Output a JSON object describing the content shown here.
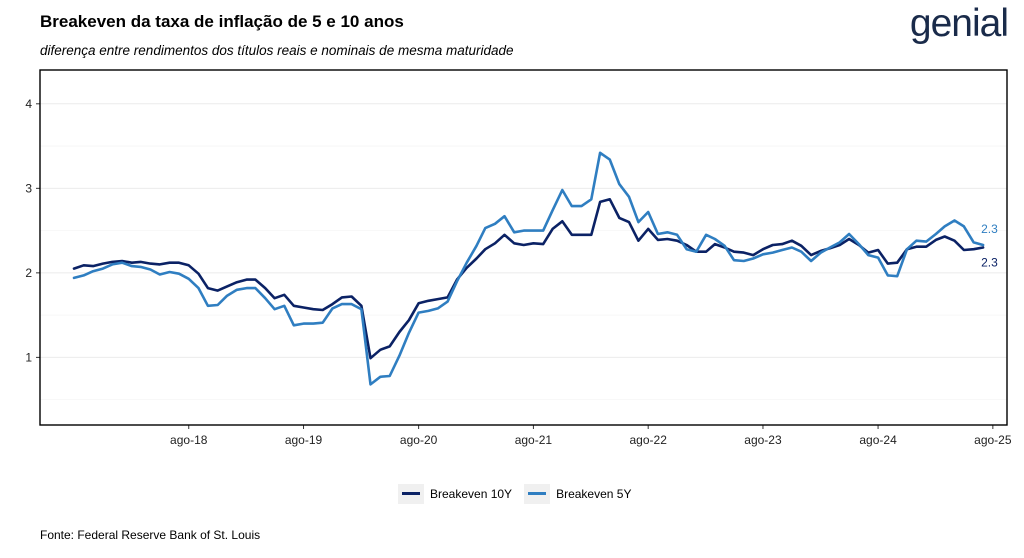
{
  "header": {
    "title": "Breakeven da taxa de inflação de 5 e 10 anos",
    "subtitle": "diferença entre rendimentos dos títulos reais e nominais de mesma maturidade",
    "logo_text": "genial"
  },
  "caption": "Fonte: Federal Reserve Bank of St. Louis",
  "colors": {
    "series_10y": "#0b2265",
    "series_5y": "#2f7ec1",
    "panel_border": "#000000",
    "grid": "#ebebeb"
  },
  "chart_data": {
    "type": "line",
    "title": "Breakeven da taxa de inflação de 5 e 10 anos",
    "subtitle": "diferença entre rendimentos dos títulos reais e nominais de mesma maturidade",
    "xlabel": "",
    "ylabel": "",
    "ylim": [
      0.2,
      4.4
    ],
    "xlim": [
      "2017-04-15",
      "2025-09-15"
    ],
    "y_ticks": [
      1,
      2,
      3,
      4
    ],
    "x_ticks": [
      {
        "date": "2018-08-01",
        "label": "ago-18"
      },
      {
        "date": "2019-08-01",
        "label": "ago-19"
      },
      {
        "date": "2020-08-01",
        "label": "ago-20"
      },
      {
        "date": "2021-08-01",
        "label": "ago-21"
      },
      {
        "date": "2022-08-01",
        "label": "ago-22"
      },
      {
        "date": "2023-08-01",
        "label": "ago-23"
      },
      {
        "date": "2024-08-01",
        "label": "ago-24"
      },
      {
        "date": "2025-08-01",
        "label": "ago-25"
      }
    ],
    "grid": true,
    "legend_position": "bottom",
    "x": [
      "2017-08-01",
      "2017-09-01",
      "2017-10-01",
      "2017-11-01",
      "2017-12-01",
      "2018-01-01",
      "2018-02-01",
      "2018-03-01",
      "2018-04-01",
      "2018-05-01",
      "2018-06-01",
      "2018-07-01",
      "2018-08-01",
      "2018-09-01",
      "2018-10-01",
      "2018-11-01",
      "2018-12-01",
      "2019-01-01",
      "2019-02-01",
      "2019-03-01",
      "2019-04-01",
      "2019-05-01",
      "2019-06-01",
      "2019-07-01",
      "2019-08-01",
      "2019-09-01",
      "2019-10-01",
      "2019-11-01",
      "2019-12-01",
      "2020-01-01",
      "2020-02-01",
      "2020-03-01",
      "2020-04-01",
      "2020-05-01",
      "2020-06-01",
      "2020-07-01",
      "2020-08-01",
      "2020-09-01",
      "2020-10-01",
      "2020-11-01",
      "2020-12-01",
      "2021-01-01",
      "2021-02-01",
      "2021-03-01",
      "2021-04-01",
      "2021-05-01",
      "2021-06-01",
      "2021-07-01",
      "2021-08-01",
      "2021-09-01",
      "2021-10-01",
      "2021-11-01",
      "2021-12-01",
      "2022-01-01",
      "2022-02-01",
      "2022-03-01",
      "2022-04-01",
      "2022-05-01",
      "2022-06-01",
      "2022-07-01",
      "2022-08-01",
      "2022-09-01",
      "2022-10-01",
      "2022-11-01",
      "2022-12-01",
      "2023-01-01",
      "2023-02-01",
      "2023-03-01",
      "2023-04-01",
      "2023-05-01",
      "2023-06-01",
      "2023-07-01",
      "2023-08-01",
      "2023-09-01",
      "2023-10-01",
      "2023-11-01",
      "2023-12-01",
      "2024-01-01",
      "2024-02-01",
      "2024-03-01",
      "2024-04-01",
      "2024-05-01",
      "2024-06-01",
      "2024-07-01",
      "2024-08-01",
      "2024-09-01",
      "2024-10-01",
      "2024-11-01",
      "2024-12-01",
      "2025-01-01",
      "2025-02-01",
      "2025-03-01",
      "2025-04-01",
      "2025-05-01",
      "2025-06-01",
      "2025-07-01"
    ],
    "series": [
      {
        "name": "Breakeven 10Y",
        "color": "#0b2265",
        "end_label": "2.3",
        "values": [
          2.05,
          2.09,
          2.08,
          2.11,
          2.13,
          2.14,
          2.12,
          2.13,
          2.11,
          2.1,
          2.12,
          2.12,
          2.09,
          1.99,
          1.82,
          1.79,
          1.84,
          1.89,
          1.92,
          1.92,
          1.82,
          1.7,
          1.74,
          1.61,
          1.59,
          1.57,
          1.56,
          1.63,
          1.71,
          1.72,
          1.61,
          0.99,
          1.09,
          1.13,
          1.3,
          1.44,
          1.64,
          1.67,
          1.69,
          1.71,
          1.92,
          2.06,
          2.17,
          2.28,
          2.35,
          2.45,
          2.35,
          2.33,
          2.35,
          2.34,
          2.52,
          2.61,
          2.45,
          2.45,
          2.45,
          2.84,
          2.87,
          2.65,
          2.6,
          2.38,
          2.52,
          2.39,
          2.4,
          2.38,
          2.33,
          2.25,
          2.25,
          2.34,
          2.3,
          2.25,
          2.24,
          2.21,
          2.28,
          2.33,
          2.34,
          2.38,
          2.32,
          2.21,
          2.26,
          2.29,
          2.33,
          2.4,
          2.33,
          2.24,
          2.27,
          2.11,
          2.12,
          2.28,
          2.31,
          2.31,
          2.39,
          2.43,
          2.38,
          2.27,
          2.28,
          2.3
        ]
      },
      {
        "name": "Breakeven 5Y",
        "color": "#2f7ec1",
        "end_label": "2.3",
        "values": [
          1.94,
          1.97,
          2.02,
          2.05,
          2.1,
          2.12,
          2.08,
          2.07,
          2.04,
          1.98,
          2.01,
          1.99,
          1.93,
          1.82,
          1.61,
          1.62,
          1.73,
          1.8,
          1.82,
          1.82,
          1.7,
          1.57,
          1.61,
          1.38,
          1.4,
          1.4,
          1.41,
          1.58,
          1.63,
          1.63,
          1.57,
          0.68,
          0.77,
          0.78,
          1.02,
          1.29,
          1.53,
          1.55,
          1.58,
          1.66,
          1.9,
          2.12,
          2.32,
          2.53,
          2.58,
          2.67,
          2.48,
          2.5,
          2.5,
          2.5,
          2.74,
          2.98,
          2.79,
          2.79,
          2.87,
          3.42,
          3.34,
          3.05,
          2.9,
          2.6,
          2.72,
          2.46,
          2.48,
          2.45,
          2.28,
          2.25,
          2.45,
          2.4,
          2.32,
          2.15,
          2.14,
          2.17,
          2.22,
          2.24,
          2.27,
          2.3,
          2.25,
          2.14,
          2.24,
          2.3,
          2.36,
          2.46,
          2.34,
          2.21,
          2.18,
          1.97,
          1.96,
          2.28,
          2.38,
          2.37,
          2.46,
          2.55,
          2.62,
          2.55,
          2.36,
          2.33
        ]
      }
    ]
  }
}
